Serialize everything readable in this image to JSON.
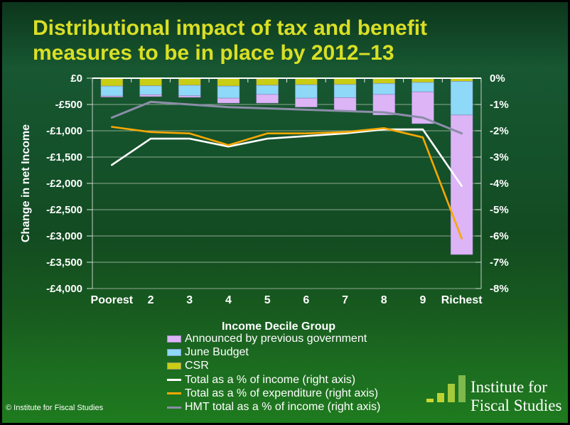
{
  "slide": {
    "title_line1": "Distributional impact of tax and benefit",
    "title_line2": "measures to be in place by 2012–13",
    "copyright": "© Institute for Fiscal Studies",
    "logo": {
      "line1": "Institute for",
      "line2": "Fiscal Studies",
      "bars": [
        {
          "height": 5,
          "color": "#ccd832"
        },
        {
          "height": 13,
          "color": "#bdd334"
        },
        {
          "height": 26,
          "color": "#a4c93a"
        },
        {
          "height": 38,
          "color": "#7fb84c"
        }
      ]
    }
  },
  "colors": {
    "title": "#d9df25",
    "background_top": "#0c351b",
    "background_bottom": "#1f7b1e",
    "axis_text": "#ffffff",
    "gridline": "#adbfad",
    "zero_line": "#ffffff"
  },
  "chart_data": {
    "type": "bar",
    "subtype": "stacked-bars-with-line-overlay",
    "categories": [
      "Poorest",
      "2",
      "3",
      "4",
      "5",
      "6",
      "7",
      "8",
      "9",
      "Richest"
    ],
    "bar_series": [
      {
        "name": "Announced by previous government",
        "color": "#ddb4f6",
        "axis": "left",
        "values": [
          -20,
          -35,
          -30,
          -95,
          -165,
          -170,
          -255,
          -390,
          -605,
          -2655
        ]
      },
      {
        "name": "June Budget",
        "color": "#8ed8f8",
        "axis": "left",
        "values": [
          -190,
          -170,
          -200,
          -230,
          -175,
          -255,
          -250,
          -210,
          -180,
          -640
        ]
      },
      {
        "name": "CSR",
        "color": "#c9cd13",
        "axis": "left",
        "values": [
          -150,
          -145,
          -135,
          -150,
          -135,
          -125,
          -120,
          -100,
          -80,
          -60
        ]
      }
    ],
    "bar_totals": [
      -360,
      -350,
      -365,
      -475,
      -475,
      -550,
      -625,
      -700,
      -865,
      -3355
    ],
    "line_series": [
      {
        "name": "Total as a % of income (right axis)",
        "color": "#ffffff",
        "axis": "right",
        "width": 2.6,
        "values": [
          -3.3,
          -2.3,
          -2.3,
          -2.6,
          -2.3,
          -2.2,
          -2.1,
          -1.95,
          -1.95,
          -4.1
        ]
      },
      {
        "name": "Total as a % of expenditure (right axis)",
        "color": "#f8a702",
        "axis": "right",
        "width": 2.6,
        "values": [
          -1.85,
          -2.05,
          -2.1,
          -2.55,
          -2.1,
          -2.1,
          -2.05,
          -1.9,
          -2.25,
          -6.1
        ]
      },
      {
        "name": "HMT total as a % of income (right axis)",
        "color": "#8b8da8",
        "axis": "right",
        "width": 3,
        "values": [
          -1.5,
          -0.9,
          -1.0,
          -1.1,
          -1.15,
          -1.2,
          -1.25,
          -1.3,
          -1.5,
          -2.1
        ]
      }
    ],
    "left_axis": {
      "title": "Change in net Income",
      "min": -4000,
      "max": 0,
      "step": 500,
      "tick_labels": [
        "£0",
        "-£500",
        "-£1,000",
        "-£1,500",
        "-£2,000",
        "-£2,500",
        "-£3,000",
        "-£3,500",
        "-£4,000"
      ]
    },
    "right_axis": {
      "min": -8,
      "max": 0,
      "step": 1,
      "tick_labels": [
        "0%",
        "-1%",
        "-2%",
        "-3%",
        "-4%",
        "-5%",
        "-6%",
        "-7%",
        "-8%"
      ]
    },
    "xlabel": "Income Decile Group",
    "grid": true,
    "legend_position": "bottom"
  }
}
